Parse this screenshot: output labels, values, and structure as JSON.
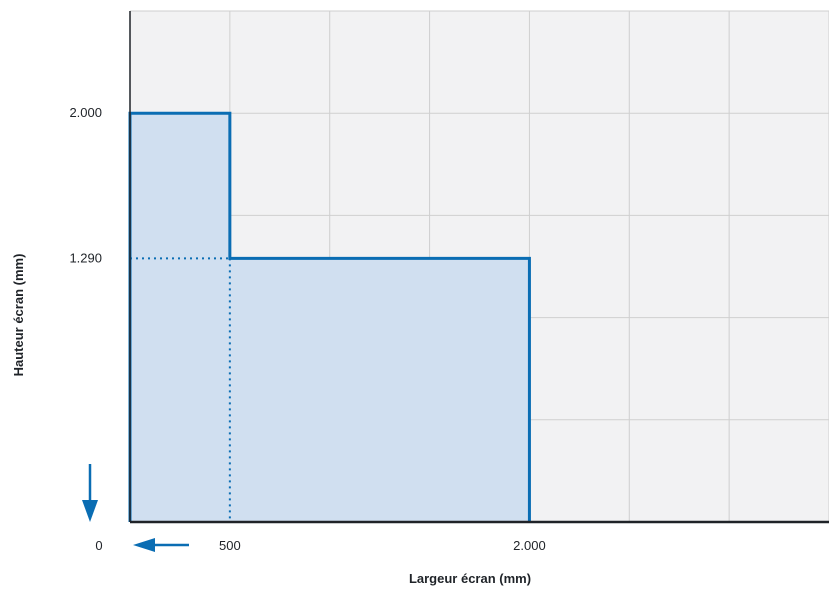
{
  "chart_data": {
    "type": "area",
    "title": "",
    "xlabel": "Largeur écran (mm)",
    "ylabel": "Hauteur écran (mm)",
    "xlim": [
      0,
      3500
    ],
    "ylim": [
      0,
      2500
    ],
    "x_ticks": [
      {
        "value": 0,
        "label": "0"
      },
      {
        "value": 500,
        "label": "500"
      },
      {
        "value": 2000,
        "label": "2.000"
      }
    ],
    "y_ticks": [
      {
        "value": 1290,
        "label": "1.290"
      },
      {
        "value": 2000,
        "label": "2.000"
      }
    ],
    "x_gridlines": [
      500,
      1000,
      1500,
      2000,
      2500,
      3000,
      3500
    ],
    "y_gridlines": [
      500,
      1000,
      1500,
      2000,
      2500
    ],
    "series": [
      {
        "points": [
          [
            0,
            0
          ],
          [
            0,
            2000
          ],
          [
            500,
            2000
          ],
          [
            500,
            1290
          ],
          [
            2000,
            1290
          ],
          [
            2000,
            0
          ]
        ]
      }
    ],
    "reference_lines": [
      {
        "from": [
          0,
          1290
        ],
        "to": [
          500,
          1290
        ],
        "style": "dotted"
      },
      {
        "from": [
          500,
          1290
        ],
        "to": [
          500,
          0
        ],
        "style": "dotted"
      }
    ],
    "grid": true,
    "colors": {
      "stroke": "#0a6db3",
      "fill": "#d0dff0",
      "grid": "#cfcfcf",
      "plot_background": "#f2f2f3",
      "axis": "#1f2328"
    }
  }
}
